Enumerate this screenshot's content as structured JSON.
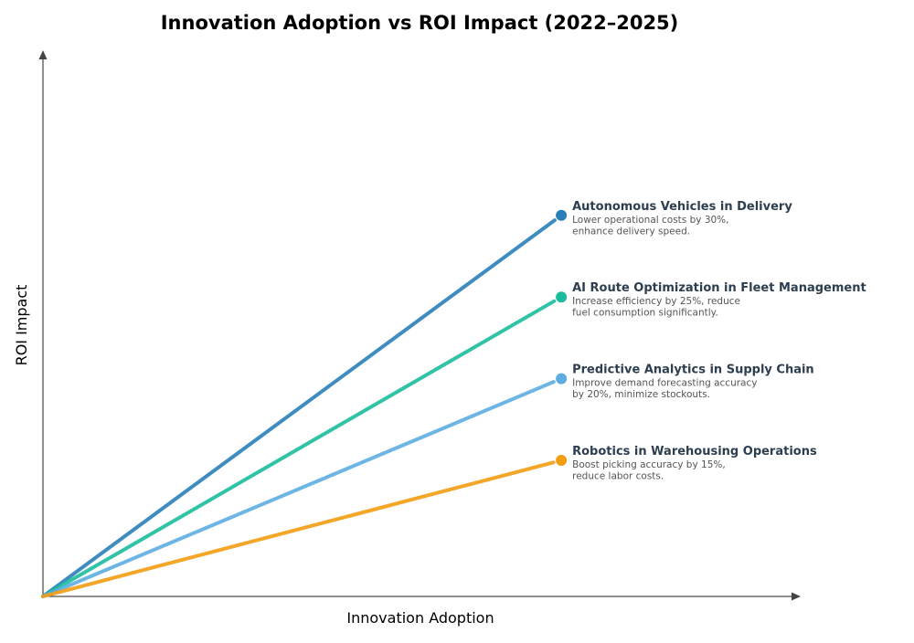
{
  "chart_data": {
    "type": "line",
    "title": "Innovation Adoption vs ROI Impact (2022–2025)",
    "xlabel": "Innovation Adoption",
    "ylabel": "ROI Impact",
    "xlim": [
      0,
      1.46
    ],
    "ylim": [
      0,
      4
    ],
    "grid": false,
    "ticks": false,
    "series": [
      {
        "name": "Autonomous Vehicles in Delivery",
        "description": [
          "Lower operational costs by 30%,",
          "enhance delivery speed."
        ],
        "color": "#2980b9",
        "x": [
          0,
          1
        ],
        "y": [
          0,
          2.8
        ]
      },
      {
        "name": "AI Route Optimization in Fleet Management",
        "description": [
          "Increase efficiency by 25%, reduce",
          "fuel consumption significantly."
        ],
        "color": "#1abc9c",
        "x": [
          0,
          1
        ],
        "y": [
          0,
          2.2
        ]
      },
      {
        "name": "Predictive Analytics in Supply Chain",
        "description": [
          "Improve demand forecasting accuracy",
          "by 20%, minimize stockouts."
        ],
        "color": "#5dade2",
        "x": [
          0,
          1
        ],
        "y": [
          0,
          1.6
        ]
      },
      {
        "name": "Robotics in Warehousing Operations",
        "description": [
          "Boost picking accuracy by 15%,",
          "reduce labor costs."
        ],
        "color": "#f39c12",
        "x": [
          0,
          1
        ],
        "y": [
          0,
          1.0
        ]
      }
    ]
  }
}
